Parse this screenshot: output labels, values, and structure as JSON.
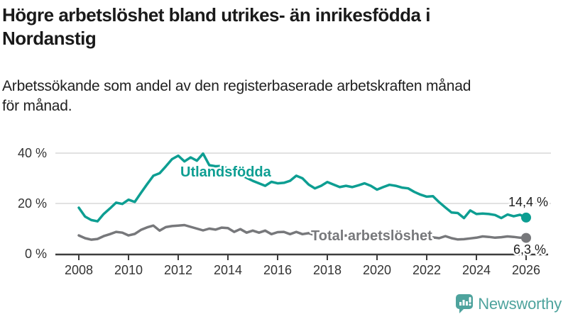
{
  "header": {
    "title_line1": "Högre arbetslöshet bland utrikes- än inrikesfödda i",
    "title_line2": "Nordanstig",
    "subtitle_line1": "Arbetssökande som andel av den registerbaserade arbetskraften månad",
    "subtitle_line2": "för månad."
  },
  "chart_data": {
    "type": "line",
    "x_axis": {
      "start": 2008,
      "step": 0.25,
      "tick_years": [
        2008,
        2010,
        2012,
        2014,
        2016,
        2018,
        2020,
        2022,
        2024,
        2026
      ]
    },
    "y_axis": {
      "unit": "%",
      "max": 40,
      "ticks": [
        {
          "value": 0,
          "label": "0 %"
        },
        {
          "value": 20,
          "label": "20 %"
        },
        {
          "value": 40,
          "label": "40 %"
        }
      ]
    },
    "grid": "horizontal-only",
    "series": [
      {
        "name": "Utlandsfödda",
        "color": "#0d9e92",
        "end_value": 14.4,
        "end_label": "14,4 %",
        "values": [
          18.3,
          14.8,
          13.4,
          12.9,
          15.8,
          18.0,
          20.3,
          19.8,
          21.5,
          20.6,
          24.2,
          27.7,
          31.0,
          32.0,
          34.7,
          37.6,
          39.0,
          36.7,
          38.3,
          37.0,
          39.8,
          35.2,
          34.8,
          34.9,
          33.8,
          32.5,
          31.5,
          30.2,
          29.0,
          28.0,
          27.0,
          28.6,
          28.0,
          28.2,
          29.0,
          31.0,
          30.0,
          27.5,
          26.0,
          27.0,
          28.5,
          27.5,
          26.5,
          27.0,
          26.5,
          27.2,
          28.0,
          27.0,
          25.5,
          26.5,
          27.4,
          27.0,
          26.3,
          26.0,
          24.6,
          23.5,
          22.7,
          22.9,
          20.5,
          18.4,
          16.4,
          16.2,
          14.2,
          17.2,
          15.8,
          16.0,
          15.8,
          15.4,
          14.2,
          15.6,
          14.9,
          15.5,
          14.4
        ]
      },
      {
        "name": "Total arbetslöshet",
        "color": "#77787b",
        "end_value": 6.3,
        "end_label": "6,3 %",
        "values": [
          7.3,
          6.2,
          5.6,
          5.9,
          7.0,
          7.8,
          8.7,
          8.4,
          7.3,
          7.9,
          9.5,
          10.5,
          11.2,
          9.2,
          10.6,
          11.0,
          11.2,
          11.4,
          10.7,
          10.0,
          9.3,
          10.0,
          9.6,
          10.4,
          10.2,
          8.7,
          9.8,
          8.4,
          9.2,
          8.4,
          9.2,
          7.8,
          8.6,
          8.7,
          7.8,
          8.7,
          7.8,
          8.2,
          7.4,
          7.8,
          7.0,
          7.6,
          6.8,
          7.3,
          7.0,
          7.5,
          7.2,
          7.0,
          7.3,
          8.3,
          8.6,
          8.2,
          7.9,
          7.6,
          7.2,
          6.9,
          6.6,
          6.5,
          6.2,
          7.0,
          6.2,
          5.7,
          5.8,
          6.1,
          6.4,
          6.9,
          6.7,
          6.4,
          6.6,
          6.9,
          6.7,
          6.4,
          6.3
        ]
      }
    ]
  },
  "footer": {
    "brand": "Newsworthy"
  }
}
